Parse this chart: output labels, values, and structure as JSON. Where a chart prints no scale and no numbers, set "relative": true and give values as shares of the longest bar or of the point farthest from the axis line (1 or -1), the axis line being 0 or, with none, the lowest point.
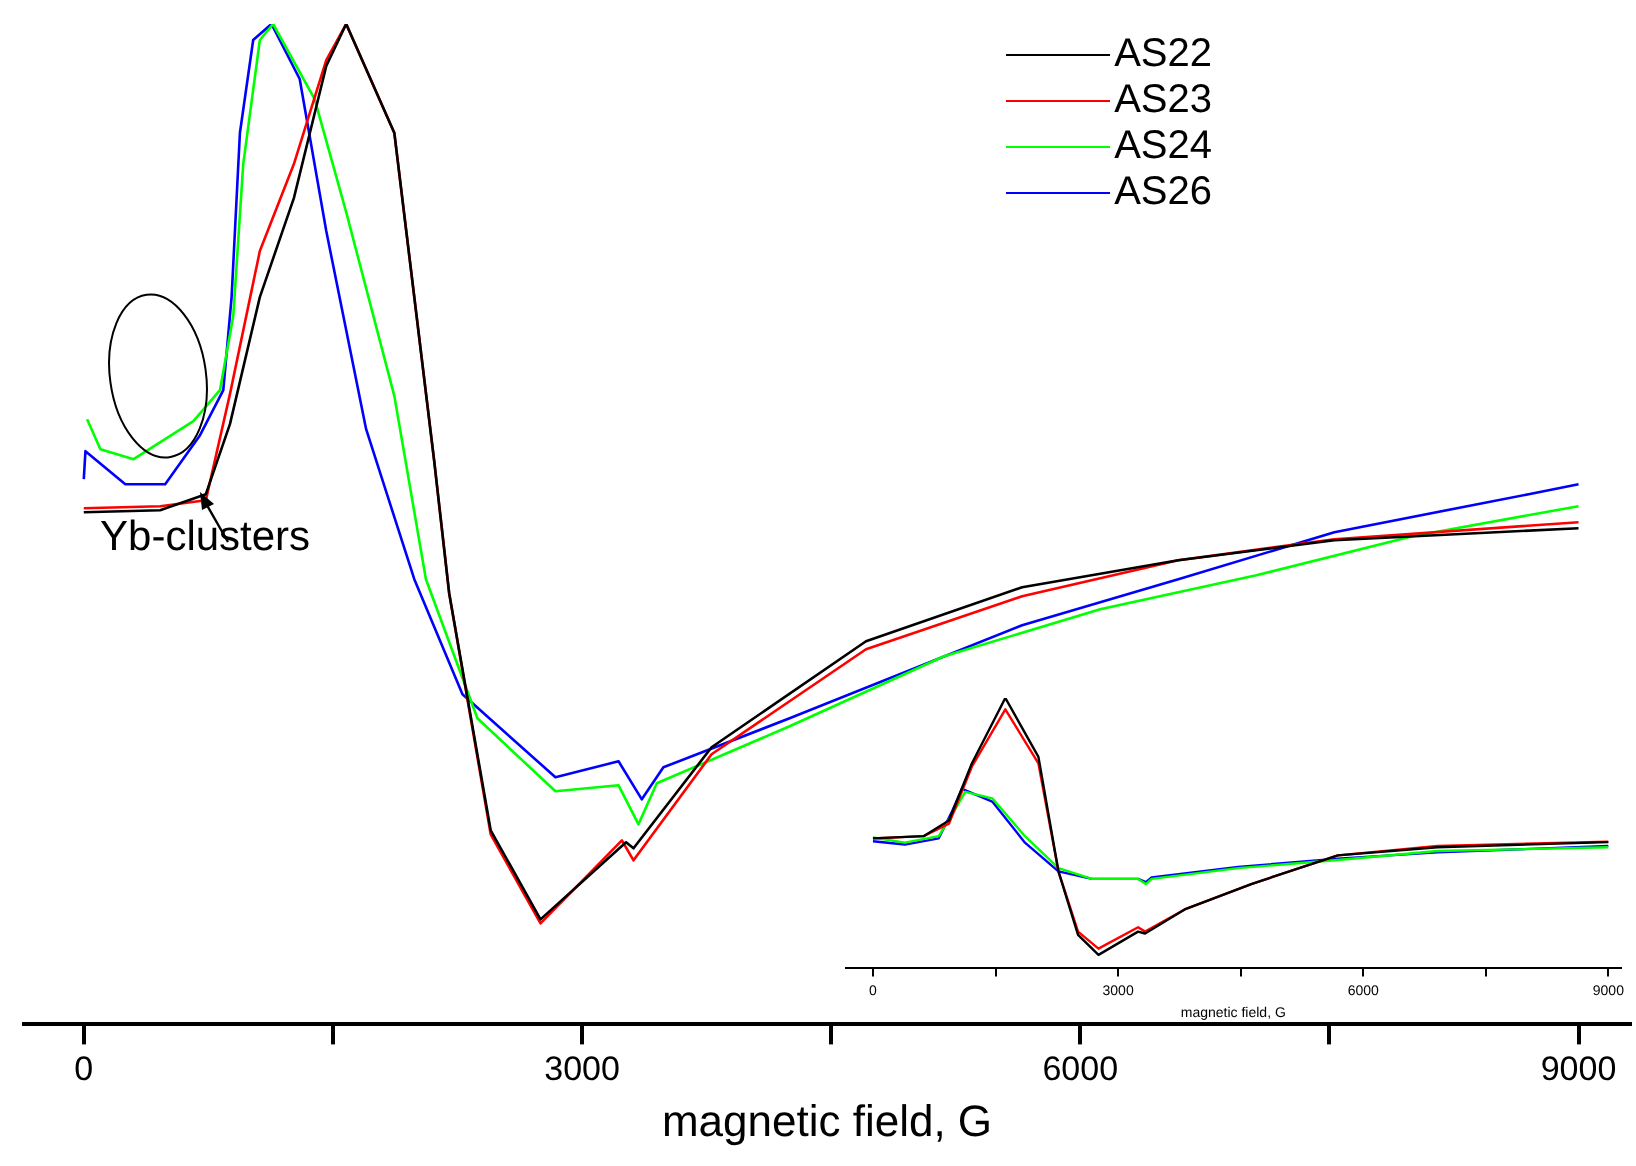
{
  "chart_data": [
    {
      "type": "line",
      "xlabel": "magnetic field, G",
      "relative": true,
      "legend": "top right",
      "xlim": [
        -360,
        9310
      ],
      "xticks": [
        0,
        {
          "value": 1500,
          "label": null
        },
        3000,
        {
          "value": 4500,
          "label": null
        },
        6000,
        {
          "value": 7500,
          "label": null
        },
        9000
      ],
      "annotations": [
        {
          "text": "Yb-clusters",
          "x": 700,
          "y": 0.53
        }
      ],
      "series": [
        {
          "name": "AS22",
          "color": "#000000",
          "x": [
            0,
            460,
            735,
            880,
            1060,
            1265,
            1460,
            1580,
            1870,
            2110,
            2200,
            2450,
            2750,
            3265,
            3310,
            3780,
            4710,
            5650,
            6590,
            7530,
            9000
          ],
          "values": [
            0.512,
            0.514,
            0.53,
            0.6,
            0.727,
            0.826,
            0.958,
            1.0,
            0.891,
            0.563,
            0.431,
            0.194,
            0.105,
            0.182,
            0.176,
            0.277,
            0.383,
            0.437,
            0.464,
            0.484,
            0.496
          ]
        },
        {
          "name": "AS23",
          "color": "#ff0000",
          "x": [
            0,
            460,
            735,
            880,
            1060,
            1265,
            1460,
            1580,
            1870,
            2110,
            2200,
            2450,
            2750,
            3240,
            3310,
            3780,
            4710,
            5650,
            6590,
            7530,
            9000
          ],
          "values": [
            0.516,
            0.518,
            0.524,
            0.63,
            0.773,
            0.86,
            0.964,
            1.0,
            0.891,
            0.563,
            0.431,
            0.19,
            0.101,
            0.184,
            0.164,
            0.27,
            0.375,
            0.428,
            0.464,
            0.485,
            0.502
          ]
        },
        {
          "name": "AS24",
          "color": "#00ff00",
          "x": [
            20,
            100,
            300,
            660,
            820,
            900,
            960,
            1060,
            1140,
            1390,
            1580,
            1870,
            2060,
            2370,
            2840,
            3220,
            3340,
            3450,
            4250,
            5180,
            6120,
            7060,
            8000,
            9000
          ],
          "values": [
            0.605,
            0.575,
            0.565,
            0.603,
            0.634,
            0.708,
            0.86,
            0.984,
            1.0,
            0.925,
            0.812,
            0.628,
            0.445,
            0.306,
            0.233,
            0.239,
            0.2,
            0.241,
            0.298,
            0.368,
            0.415,
            0.449,
            0.488,
            0.518
          ]
        },
        {
          "name": "AS26",
          "color": "#0000ff",
          "x": [
            0,
            10,
            250,
            490,
            700,
            840,
            890,
            940,
            1020,
            1130,
            1300,
            1460,
            1700,
            1990,
            2280,
            2840,
            3220,
            3360,
            3490,
            4250,
            5650,
            6590,
            7530,
            8700,
            9000
          ],
          "values": [
            0.545,
            0.573,
            0.54,
            0.54,
            0.589,
            0.634,
            0.727,
            0.891,
            0.984,
            1.0,
            0.945,
            0.793,
            0.595,
            0.445,
            0.33,
            0.247,
            0.263,
            0.225,
            0.257,
            0.306,
            0.399,
            0.445,
            0.492,
            0.53,
            0.54
          ]
        }
      ]
    },
    {
      "type": "line",
      "xlabel": "magnetic field, G",
      "relative": true,
      "xlim": [
        -330,
        9150
      ],
      "xticks": [
        0,
        {
          "value": 1500,
          "label": null
        },
        3000,
        {
          "value": 4500,
          "label": null
        },
        6000,
        {
          "value": 7500,
          "label": null
        },
        9000
      ],
      "series": [
        {
          "color": "#000000",
          "x": [
            0,
            620,
            930,
            1210,
            1620,
            2025,
            2270,
            2510,
            2760,
            3245,
            3330,
            3815,
            4630,
            5690,
            6910,
            9000
          ],
          "values": [
            0.481,
            0.489,
            0.547,
            0.758,
            1.0,
            0.782,
            0.359,
            0.124,
            0.05,
            0.136,
            0.129,
            0.218,
            0.312,
            0.418,
            0.448,
            0.467
          ]
        },
        {
          "color": "#ff0000",
          "x": [
            0,
            620,
            930,
            1210,
            1620,
            2025,
            2270,
            2510,
            2760,
            3245,
            3330,
            3815,
            4630,
            5690,
            6910,
            9000
          ],
          "values": [
            0.481,
            0.489,
            0.535,
            0.746,
            0.958,
            0.758,
            0.359,
            0.136,
            0.073,
            0.152,
            0.136,
            0.218,
            0.312,
            0.418,
            0.453,
            0.469
          ]
        },
        {
          "color": "#00ff00",
          "x": [
            0,
            390,
            805,
            970,
            1130,
            1460,
            1860,
            2270,
            2680,
            3245,
            3340,
            3410,
            4470,
            5690,
            6910,
            9000
          ],
          "values": [
            0.484,
            0.465,
            0.489,
            0.57,
            0.653,
            0.629,
            0.489,
            0.371,
            0.331,
            0.331,
            0.312,
            0.331,
            0.371,
            0.401,
            0.434,
            0.448
          ]
        },
        {
          "color": "#0000ff",
          "x": [
            0,
            390,
            805,
            970,
            1090,
            1460,
            1860,
            2270,
            2680,
            3245,
            3340,
            3410,
            4470,
            5690,
            6910,
            9000
          ],
          "values": [
            0.47,
            0.458,
            0.481,
            0.582,
            0.664,
            0.617,
            0.465,
            0.359,
            0.331,
            0.331,
            0.319,
            0.336,
            0.375,
            0.406,
            0.429,
            0.453
          ]
        }
      ]
    }
  ]
}
